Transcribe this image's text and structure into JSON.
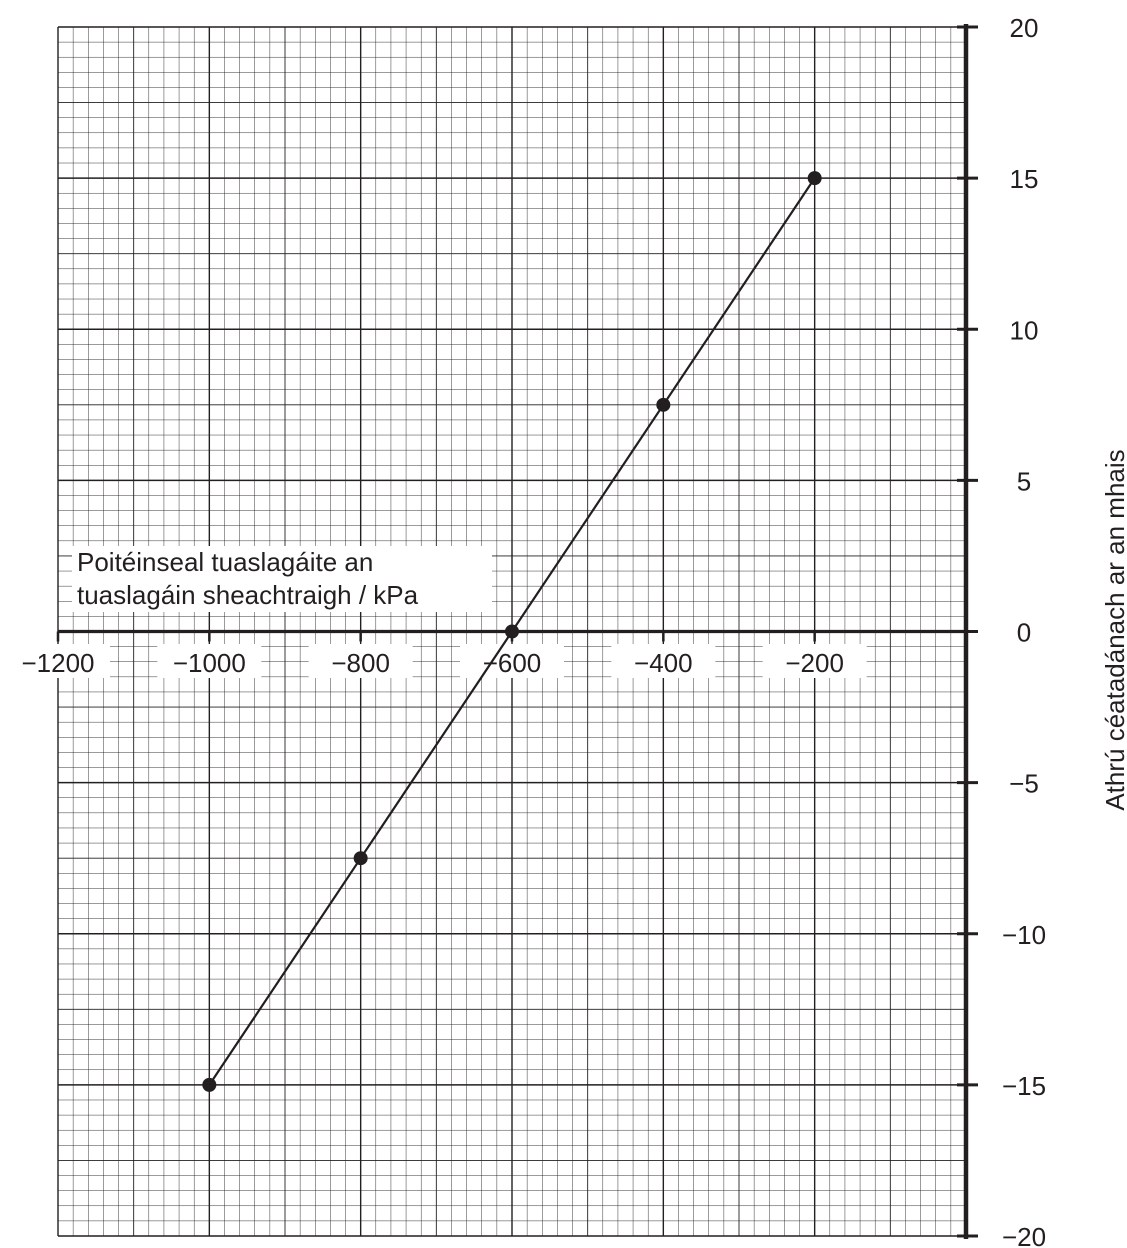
{
  "chart_data": {
    "type": "line",
    "xlabel_lines": [
      "Poitéinseal tuaslagáite an",
      "tuaslagáin sheachtraigh / kPa"
    ],
    "ylabel": "Athrú céatadánach ar an mhais",
    "xlim": [
      -1200,
      0
    ],
    "ylim": [
      -20,
      20
    ],
    "x_ticks": [
      -1200,
      -1000,
      -800,
      -600,
      -400,
      -200
    ],
    "x_tick_labels": [
      "−1200",
      "−1000",
      "−800",
      "−600",
      "−400",
      "−200"
    ],
    "y_ticks": [
      20,
      15,
      10,
      5,
      0,
      -5,
      -10,
      -15,
      -20
    ],
    "y_tick_labels": [
      "20",
      "15",
      "10",
      "5",
      "0",
      "−5",
      "−10",
      "−15",
      "−20"
    ],
    "grid": true,
    "series": [
      {
        "x": [
          -1000,
          -800,
          -600,
          -400,
          -200
        ],
        "y": [
          -15,
          -7.5,
          0,
          7.5,
          15
        ]
      }
    ],
    "colors": {
      "ink": "#231f20",
      "grid": "#231f20"
    }
  }
}
